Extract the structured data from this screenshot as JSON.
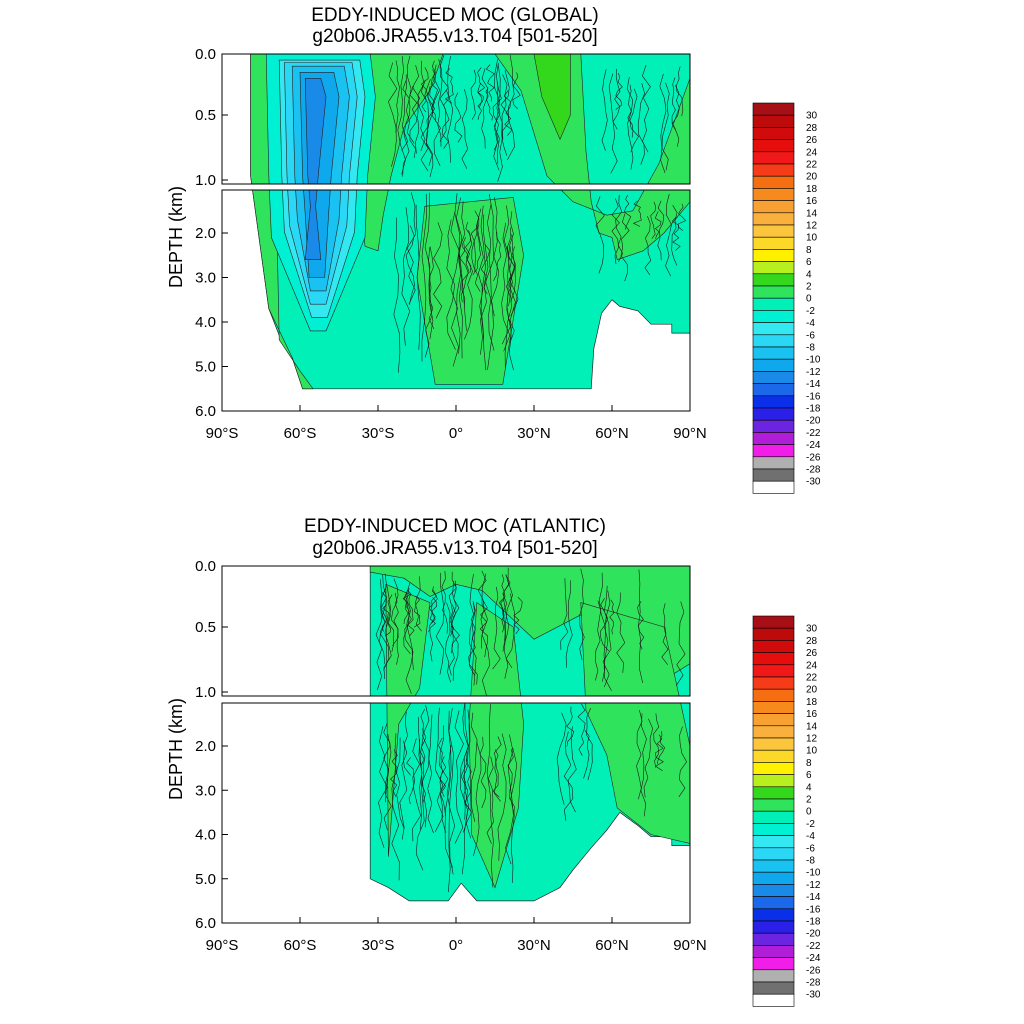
{
  "chart_data": [
    {
      "type": "heatmap",
      "id": "global",
      "title": "EDDY-INDUCED MOC (GLOBAL)",
      "subtitle": "g20b06.JRA55.v13.T04 [501-520]",
      "ylabel": "DEPTH (km)",
      "x_ticks": [
        "90°S",
        "60°S",
        "30°S",
        "0°",
        "30°N",
        "60°N",
        "90°N"
      ],
      "x_tick_values": [
        -90,
        -60,
        -30,
        0,
        30,
        60,
        90
      ],
      "upper_y_ticks": [
        "0.0",
        "0.5",
        "1.0"
      ],
      "upper_y_values": [
        0.0,
        0.5,
        1.0
      ],
      "lower_y_ticks": [
        "2.0",
        "3.0",
        "4.0",
        "5.0",
        "6.0"
      ],
      "lower_y_values": [
        2.0,
        3.0,
        4.0,
        5.0,
        6.0
      ],
      "xlim": [
        -90,
        90
      ],
      "ylim_upper": [
        0,
        1.0
      ],
      "ylim_lower": [
        1.0,
        6.0
      ],
      "ocean_extent_deg": [
        -79,
        90
      ],
      "features": [
        {
          "name": "southern-ocean-cell",
          "value": -10,
          "lat": [
            -72,
            -35
          ],
          "depth": [
            0,
            4.2
          ]
        },
        {
          "name": "southern-ocean-core",
          "value": -14,
          "lat": [
            -60,
            -47
          ],
          "depth": [
            0.05,
            3.3
          ]
        },
        {
          "name": "north-atlantic-cell",
          "value": 2,
          "lat": [
            28,
            48
          ],
          "depth": [
            0,
            0.9
          ]
        }
      ]
    },
    {
      "type": "heatmap",
      "id": "atlantic",
      "title": "EDDY-INDUCED MOC (ATLANTIC)",
      "subtitle": "g20b06.JRA55.v13.T04 [501-520]",
      "ylabel": "DEPTH (km)",
      "x_ticks": [
        "90°S",
        "60°S",
        "30°S",
        "0°",
        "30°N",
        "60°N",
        "90°N"
      ],
      "x_tick_values": [
        -90,
        -60,
        -30,
        0,
        30,
        60,
        90
      ],
      "upper_y_ticks": [
        "0.0",
        "0.5",
        "1.0"
      ],
      "upper_y_values": [
        0.0,
        0.5,
        1.0
      ],
      "lower_y_ticks": [
        "2.0",
        "3.0",
        "4.0",
        "5.0",
        "6.0"
      ],
      "lower_y_values": [
        2.0,
        3.0,
        4.0,
        5.0,
        6.0
      ],
      "xlim": [
        -90,
        90
      ],
      "ylim_upper": [
        0,
        1.0
      ],
      "ylim_lower": [
        1.0,
        6.0
      ],
      "ocean_extent_deg": [
        -33,
        90
      ],
      "features": [
        {
          "name": "equatorial-tongue",
          "value": -1,
          "lat": [
            -15,
            25
          ],
          "depth": [
            0,
            5.2
          ]
        },
        {
          "name": "northern-cell",
          "value": 1,
          "lat": [
            30,
            60
          ],
          "depth": [
            0,
            4.0
          ]
        }
      ]
    }
  ],
  "colorbar": {
    "labels": [
      "30",
      "28",
      "26",
      "24",
      "22",
      "20",
      "18",
      "16",
      "14",
      "12",
      "10",
      "8",
      "6",
      "4",
      "2",
      "0",
      "-2",
      "-4",
      "-6",
      "-8",
      "-10",
      "-12",
      "-14",
      "-16",
      "-18",
      "-20",
      "-22",
      "-24",
      "-26",
      "-28",
      "-30"
    ],
    "colors": [
      "#a50f15",
      "#bd0a0a",
      "#d10b0b",
      "#e60d0d",
      "#f01818",
      "#f53b17",
      "#f56e12",
      "#f78a1c",
      "#f8a133",
      "#f9b03c",
      "#fbc53d",
      "#fcd928",
      "#fff000",
      "#b7ef1f",
      "#33d81c",
      "#2fe35c",
      "#00f0b8",
      "#00f0d4",
      "#33e8f0",
      "#2ad8f5",
      "#19c2f0",
      "#10a8ec",
      "#1a8ae8",
      "#1c68ea",
      "#0a2fe8",
      "#2a20e8",
      "#6b24e0",
      "#b01ed8",
      "#f01ee8",
      "#b0b0b0",
      "#707070",
      "#ffffff"
    ]
  }
}
